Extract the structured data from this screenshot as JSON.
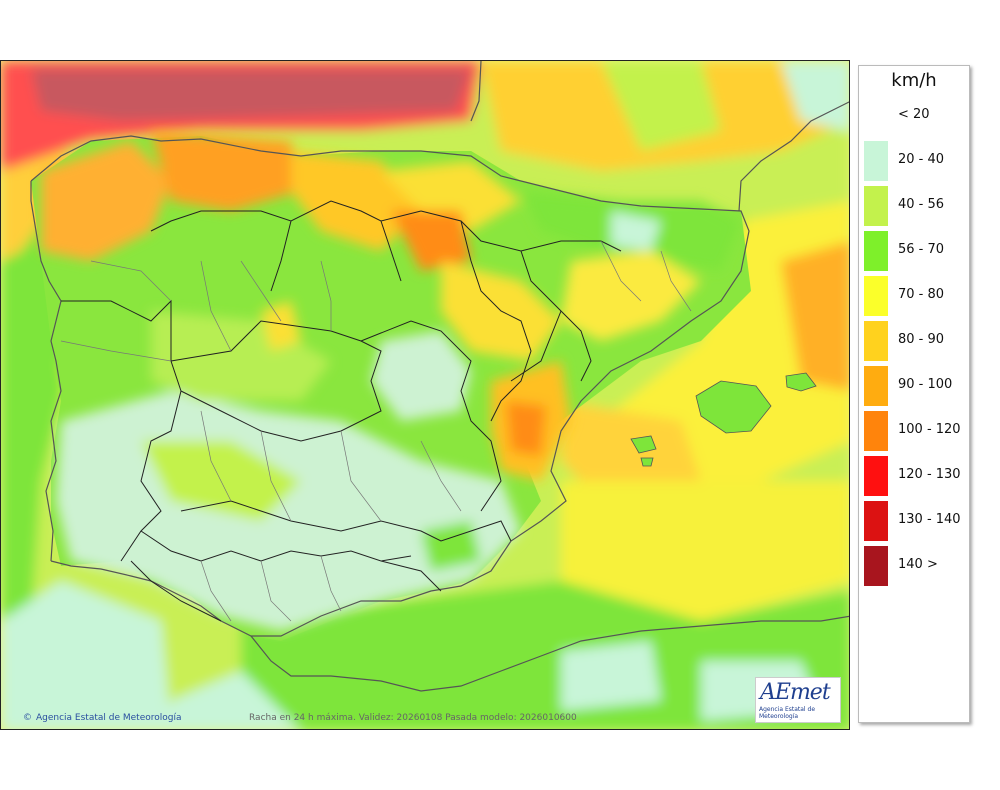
{
  "map": {
    "credit_agency": "Agencia Estatal de Meteorología",
    "credit_symbol": "©",
    "validity_text": "Racha en 24 h máxima. Validez: 20260108 Pasada modelo: 2026010600",
    "logo_text": "AEmet",
    "logo_subtext": "Agencia Estatal de Meteorología"
  },
  "legend": {
    "unit": "km/h",
    "classes": [
      {
        "label": "< 20",
        "color": "#ffffff"
      },
      {
        "label": "20 - 40",
        "color": "#c8f5d8"
      },
      {
        "label": "40 - 56",
        "color": "#c3f24c"
      },
      {
        "label": "56 - 70",
        "color": "#7ef02a"
      },
      {
        "label": "70 - 80",
        "color": "#fbff2a"
      },
      {
        "label": "80 - 90",
        "color": "#ffd21e"
      },
      {
        "label": "90 - 100",
        "color": "#ffac10"
      },
      {
        "label": "100 - 120",
        "color": "#ff840c"
      },
      {
        "label": "120 - 130",
        "color": "#ff1010"
      },
      {
        "label": "130 - 140",
        "color": "#dc1212"
      },
      {
        "label": "140 >",
        "color": "#a8151e"
      }
    ]
  }
}
